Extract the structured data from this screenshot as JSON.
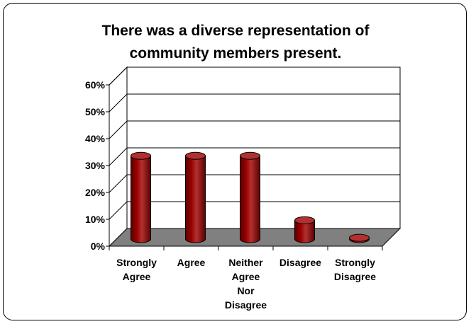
{
  "chart_data": {
    "type": "bar",
    "title_lines": [
      "There was a diverse representation of",
      "community members present."
    ],
    "categories": [
      [
        "Strongly",
        "Agree"
      ],
      [
        "Agree"
      ],
      [
        "Neither",
        "Agree",
        "Nor",
        "Disagree"
      ],
      [
        "Disagree"
      ],
      [
        "Strongly",
        "Disagree"
      ]
    ],
    "values": [
      31,
      31,
      31,
      7,
      0.5
    ],
    "ylim": [
      0,
      60
    ],
    "yticks": [
      "0%",
      "10%",
      "20%",
      "30%",
      "40%",
      "50%",
      "60%"
    ],
    "ytick_values": [
      0,
      10,
      20,
      30,
      40,
      50,
      60
    ],
    "grid": true,
    "colors": {
      "bar_front": "#990000",
      "bar_dark": "#5c0000",
      "bar_top": "#b33030",
      "floor": "#808080",
      "wall": "#ffffff",
      "gridline": "#000000"
    }
  }
}
